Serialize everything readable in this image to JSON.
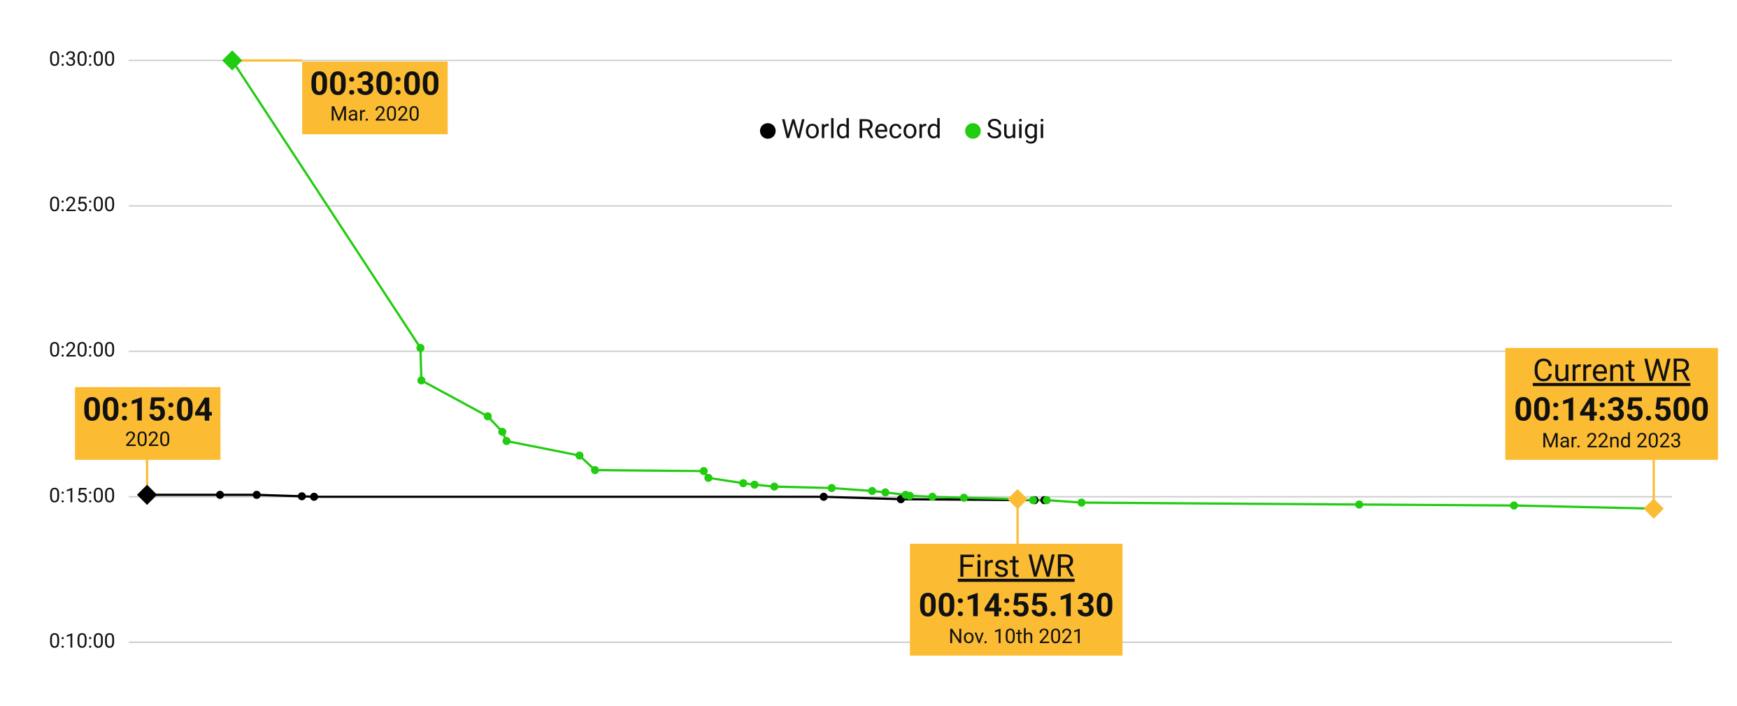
{
  "chart_data": {
    "type": "line",
    "xlim": [
      2019.98,
      2023.26
    ],
    "ylim": [
      600,
      1800
    ],
    "yticks": [
      {
        "value": 600,
        "label": "0:10:00"
      },
      {
        "value": 900,
        "label": "0:15:00"
      },
      {
        "value": 1200,
        "label": "0:20:00"
      },
      {
        "value": 1500,
        "label": "0:25:00"
      },
      {
        "value": 1800,
        "label": "0:30:00"
      }
    ],
    "grid": true,
    "legend": "top",
    "series": [
      {
        "name": "World Record",
        "color": "#000000",
        "x": [
          2020.019,
          2020.174,
          2020.252,
          2020.348,
          2020.374,
          2021.457,
          2021.621,
          2021.905,
          2021.926
        ],
        "values": [
          904,
          904,
          904,
          901,
          900,
          900,
          895,
          893,
          893
        ]
      },
      {
        "name": "Suigi",
        "color": "#22cc11",
        "x": [
          2020.2,
          2020.6,
          2020.602,
          2020.743,
          2020.774,
          2020.783,
          2020.938,
          2020.971,
          2021.202,
          2021.212,
          2021.286,
          2021.31,
          2021.352,
          2021.474,
          2021.56,
          2021.588,
          2021.631,
          2021.64,
          2021.688,
          2021.755,
          2021.869,
          2021.902,
          2021.931,
          2022.005,
          2022.595,
          2022.924,
          2023.221
        ],
        "values": [
          1800,
          1207,
          1140,
          1066,
          1034,
          1015,
          985,
          955,
          953,
          939,
          928,
          925,
          921,
          918,
          912,
          909,
          904,
          902,
          900,
          898,
          895.13,
          893,
          893,
          888,
          884,
          882,
          875.5
        ]
      }
    ],
    "annotations": [
      {
        "text": "00:30:00",
        "subtext": "Mar. 2020"
      },
      {
        "text": "00:15:04",
        "subtext": "2020"
      },
      {
        "heading": "First WR",
        "text": "00:14:55.130",
        "subtext": "Nov. 10th 2021"
      },
      {
        "heading": "Current WR",
        "text": "00:14:35.500",
        "subtext": "Mar. 22nd 2023"
      }
    ]
  }
}
